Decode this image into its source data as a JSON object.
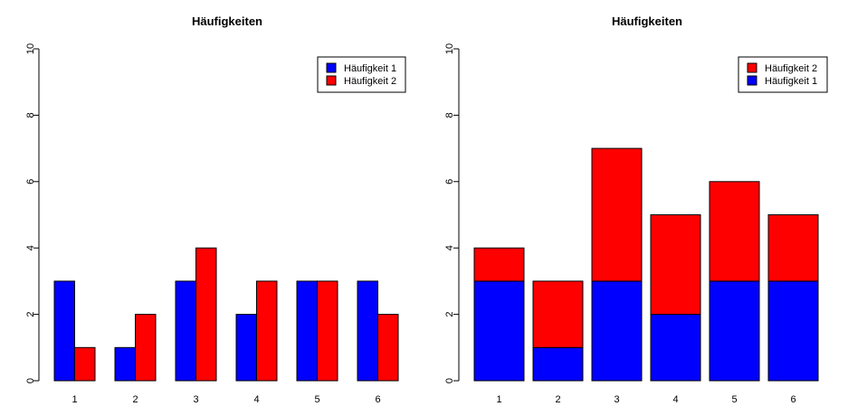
{
  "chart_data": [
    {
      "type": "bar",
      "mode": "grouped",
      "title": "Häufigkeiten",
      "xlabel": "",
      "ylabel": "",
      "categories": [
        "1",
        "2",
        "3",
        "4",
        "5",
        "6"
      ],
      "ylim": [
        0,
        10
      ],
      "yticks": [
        "0",
        "2",
        "4",
        "6",
        "8",
        "10"
      ],
      "grid": false,
      "legend_position": "top-right",
      "series": [
        {
          "name": "Häufigkeit 1",
          "color": "#0000ff",
          "values": [
            3,
            1,
            3,
            2,
            3,
            3
          ]
        },
        {
          "name": "Häufigkeit 2",
          "color": "#ff0000",
          "values": [
            1,
            2,
            4,
            3,
            3,
            2
          ]
        }
      ],
      "legend": [
        {
          "label": "Häufigkeit 1",
          "color": "#0000ff"
        },
        {
          "label": "Häufigkeit 2",
          "color": "#ff0000"
        }
      ]
    },
    {
      "type": "bar",
      "mode": "stacked",
      "title": "Häufigkeiten",
      "xlabel": "",
      "ylabel": "",
      "categories": [
        "1",
        "2",
        "3",
        "4",
        "5",
        "6"
      ],
      "ylim": [
        0,
        10
      ],
      "yticks": [
        "0",
        "2",
        "4",
        "6",
        "8",
        "10"
      ],
      "grid": false,
      "legend_position": "top-right",
      "series": [
        {
          "name": "Häufigkeit 1",
          "color": "#0000ff",
          "values": [
            3,
            1,
            3,
            2,
            3,
            3
          ]
        },
        {
          "name": "Häufigkeit 2",
          "color": "#ff0000",
          "values": [
            1,
            2,
            4,
            3,
            3,
            2
          ]
        }
      ],
      "legend": [
        {
          "label": "Häufigkeit 2",
          "color": "#ff0000"
        },
        {
          "label": "Häufigkeit 1",
          "color": "#0000ff"
        }
      ]
    }
  ]
}
